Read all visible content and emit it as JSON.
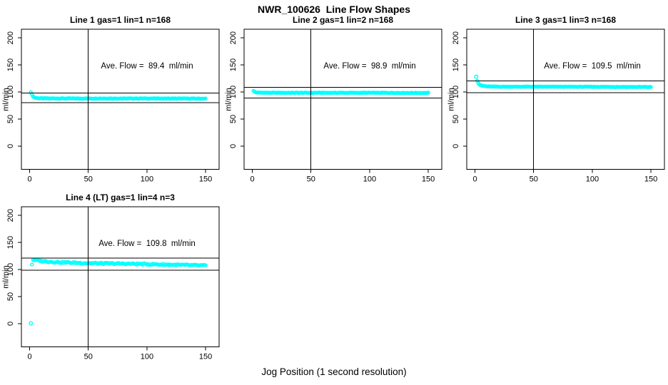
{
  "chart_data": {
    "type": "scatter",
    "title": "NWR_100626  Line Flow Shapes",
    "xlabel": "Jog Position (1 second resolution)",
    "ylabel": "ml/min",
    "x_ticks": [
      0,
      50,
      100,
      150
    ],
    "y_ticks": [
      0,
      50,
      100,
      150,
      200
    ],
    "xlim": [
      -7,
      161.5
    ],
    "ylim": [
      -43,
      216
    ],
    "grid": false,
    "legend": "none",
    "point_color": "#00FFFF",
    "axis_color": "#000000",
    "panels": [
      {
        "title": "Line 1 gas=1 lin=1 n=168",
        "ylabel": "ml/min",
        "annotation": "Ave. Flow =  89.4  ml/min",
        "ave_flow_ml_min": 89.4,
        "n": 168,
        "ref_line_upper": 98.3,
        "ref_line_lower": 80.5,
        "vline_x": 50,
        "plot_points": 168,
        "jitter": 0.5,
        "series_keypoints": [
          [
            1,
            100
          ],
          [
            2,
            95
          ],
          [
            3,
            91.5
          ],
          [
            4,
            89.8
          ],
          [
            6,
            88.8
          ],
          [
            10,
            88.2
          ],
          [
            30,
            88
          ],
          [
            100,
            88
          ],
          [
            150,
            87.7
          ]
        ],
        "outlier_points": []
      },
      {
        "title": "Line 2 gas=1 lin=2 n=168",
        "ylabel": "ml/min",
        "annotation": "Ave. Flow =  98.9  ml/min",
        "ave_flow_ml_min": 98.9,
        "n": 168,
        "ref_line_upper": 108.8,
        "ref_line_lower": 89.0,
        "vline_x": 50,
        "plot_points": 168,
        "jitter": 0.5,
        "series_keypoints": [
          [
            1,
            102.5
          ],
          [
            2,
            100.3
          ],
          [
            3,
            99.2
          ],
          [
            6,
            98.7
          ],
          [
            20,
            98.5
          ],
          [
            100,
            98.5
          ],
          [
            150,
            98.2
          ]
        ],
        "outlier_points": []
      },
      {
        "title": "Line 3 gas=1 lin=3 n=168",
        "ylabel": "ml/min",
        "annotation": "Ave. Flow =  109.5  ml/min",
        "ave_flow_ml_min": 109.5,
        "n": 168,
        "ref_line_upper": 120.5,
        "ref_line_lower": 98.6,
        "vline_x": 50,
        "plot_points": 167,
        "jitter": 0.5,
        "series_keypoints": [
          [
            2,
            121
          ],
          [
            3,
            116
          ],
          [
            4,
            113.5
          ],
          [
            6,
            111.5
          ],
          [
            10,
            110.3
          ],
          [
            20,
            109.8
          ],
          [
            100,
            109.6
          ],
          [
            150,
            109.2
          ]
        ],
        "outlier_points": [
          [
            1,
            128
          ]
        ]
      },
      {
        "title": "Line 4 (LT) gas=1 lin=4 n=3",
        "ylabel": "ml/min",
        "annotation": "Ave. Flow =  109.8  ml/min",
        "ave_flow_ml_min": 109.8,
        "n": 3,
        "ref_line_upper": 120.8,
        "ref_line_lower": 98.8,
        "vline_x": 50,
        "plot_points": 149,
        "jitter": 1.4,
        "series_keypoints": [
          [
            2,
            110
          ],
          [
            3,
            118
          ],
          [
            5,
            117.3
          ],
          [
            10,
            115.8
          ],
          [
            20,
            114
          ],
          [
            40,
            112.3
          ],
          [
            60,
            111.3
          ],
          [
            80,
            110.8
          ],
          [
            100,
            110
          ],
          [
            120,
            108.8
          ],
          [
            150,
            107.3
          ]
        ],
        "outlier_points": [
          [
            1,
            0.5
          ]
        ]
      }
    ]
  }
}
